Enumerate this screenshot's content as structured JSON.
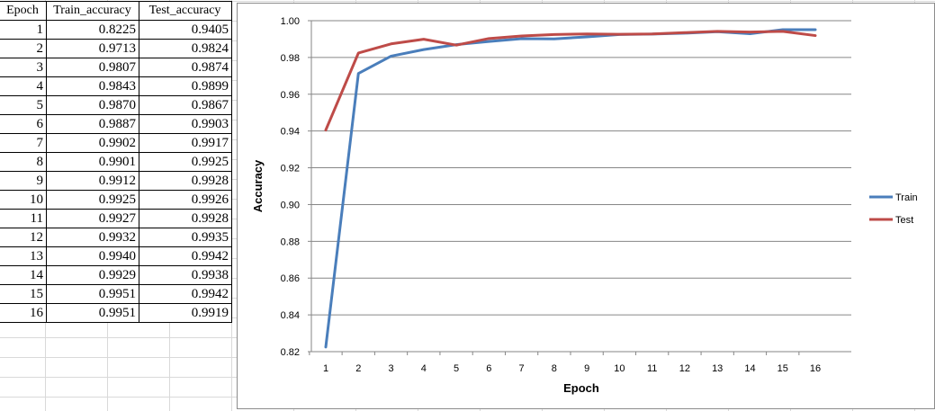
{
  "table": {
    "headers": [
      "Epoch",
      "Train_accuracy",
      "Test_accuracy"
    ],
    "rows": [
      [
        "1",
        "0.8225",
        "0.9405"
      ],
      [
        "2",
        "0.9713",
        "0.9824"
      ],
      [
        "3",
        "0.9807",
        "0.9874"
      ],
      [
        "4",
        "0.9843",
        "0.9899"
      ],
      [
        "5",
        "0.9870",
        "0.9867"
      ],
      [
        "6",
        "0.9887",
        "0.9903"
      ],
      [
        "7",
        "0.9902",
        "0.9917"
      ],
      [
        "8",
        "0.9901",
        "0.9925"
      ],
      [
        "9",
        "0.9912",
        "0.9928"
      ],
      [
        "10",
        "0.9925",
        "0.9926"
      ],
      [
        "11",
        "0.9927",
        "0.9928"
      ],
      [
        "12",
        "0.9932",
        "0.9935"
      ],
      [
        "13",
        "0.9940",
        "0.9942"
      ],
      [
        "14",
        "0.9929",
        "0.9938"
      ],
      [
        "15",
        "0.9951",
        "0.9942"
      ],
      [
        "16",
        "0.9951",
        "0.9919"
      ]
    ]
  },
  "chart_data": {
    "type": "line",
    "title": "",
    "xlabel": "Epoch",
    "ylabel": "Accuracy",
    "x": [
      1,
      2,
      3,
      4,
      5,
      6,
      7,
      8,
      9,
      10,
      11,
      12,
      13,
      14,
      15,
      16
    ],
    "ylim": [
      0.82,
      1.0
    ],
    "yticks": [
      "0.82",
      "0.84",
      "0.86",
      "0.88",
      "0.90",
      "0.92",
      "0.94",
      "0.96",
      "0.98",
      "1.00"
    ],
    "grid": "horizontal",
    "legend_position": "right",
    "series": [
      {
        "name": "Train",
        "color": "#4a7ebb",
        "values": [
          0.8225,
          0.9713,
          0.9807,
          0.9843,
          0.987,
          0.9887,
          0.9902,
          0.9901,
          0.9912,
          0.9925,
          0.9927,
          0.9932,
          0.994,
          0.9929,
          0.9951,
          0.9951
        ]
      },
      {
        "name": "Test",
        "color": "#be4b48",
        "values": [
          0.9405,
          0.9824,
          0.9874,
          0.9899,
          0.9867,
          0.9903,
          0.9917,
          0.9925,
          0.9928,
          0.9926,
          0.9928,
          0.9935,
          0.9942,
          0.9938,
          0.9942,
          0.9919
        ]
      }
    ]
  }
}
